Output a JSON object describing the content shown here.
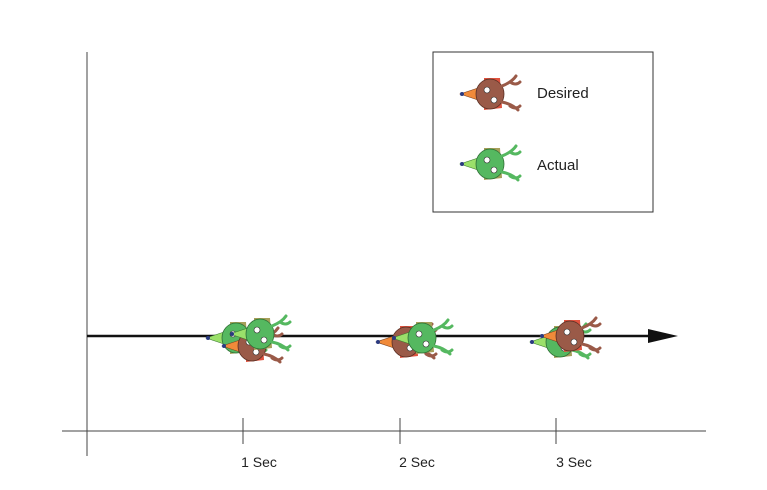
{
  "legend": {
    "desired_label": "Desired",
    "actual_label": "Actual"
  },
  "axis": {
    "ticks": [
      {
        "label": "1 Sec"
      },
      {
        "label": "2 Sec"
      },
      {
        "label": "3 Sec"
      }
    ]
  },
  "colors": {
    "desired_body": "#9a5a48",
    "desired_hat": "#f08a3a",
    "desired_back": "#e0533f",
    "actual_body": "#55b860",
    "actual_hat": "#9be06a",
    "axis": "#111111"
  },
  "icons": {
    "desired": "desired-creature-icon",
    "actual": "actual-creature-icon"
  }
}
